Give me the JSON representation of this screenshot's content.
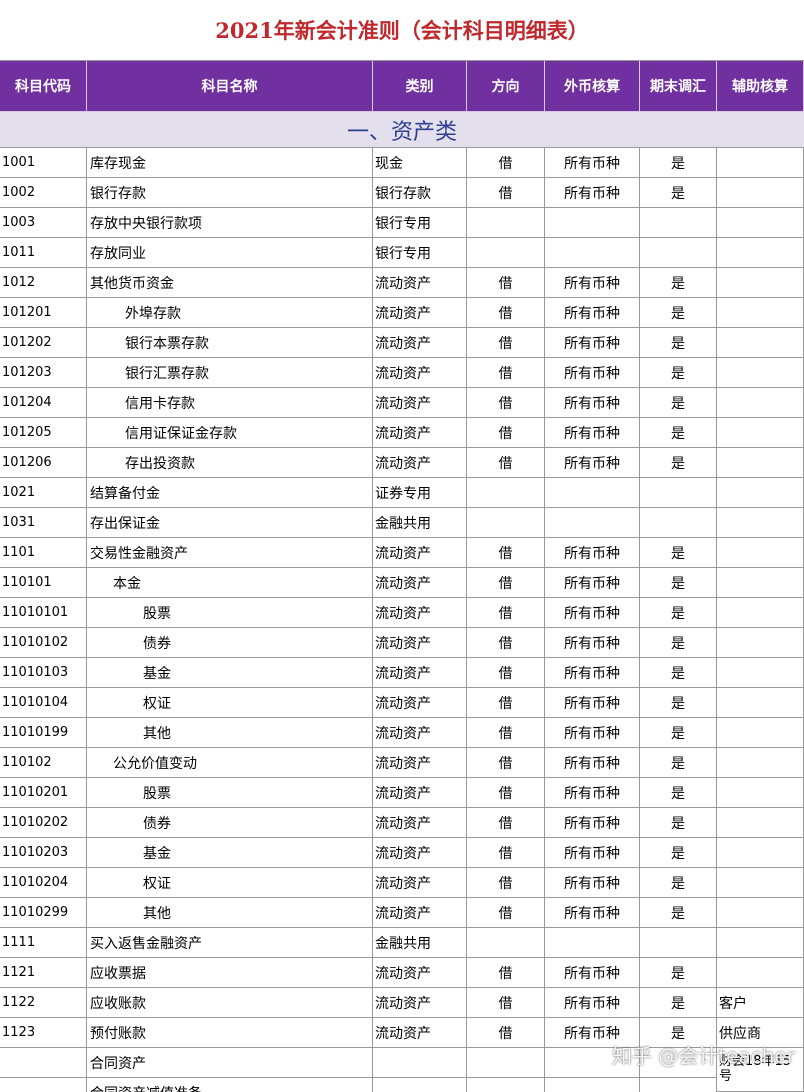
{
  "title": "2021年新会计准则（会计科目明细表）",
  "header": {
    "columns": [
      "科目代码",
      "科目名称",
      "类别",
      "方向",
      "外币核算",
      "期末调汇",
      "辅助核算"
    ]
  },
  "section": {
    "title": "一、资产类"
  },
  "rows": [
    [
      "1001",
      "库存现金",
      "现金",
      "借",
      "所有币种",
      "是",
      null
    ],
    [
      "1002",
      "银行存款",
      "银行存款",
      "借",
      "所有币种",
      "是",
      null
    ],
    [
      "1003",
      "存放中央银行款项",
      "银行专用",
      null,
      null,
      null,
      null
    ],
    [
      "1011",
      "存放同业",
      "银行专用",
      null,
      null,
      null,
      null
    ],
    [
      "1012",
      "其他货币资金",
      "流动资产",
      "借",
      "所有币种",
      "是",
      null
    ],
    [
      "101201",
      "外埠存款",
      "流动资产",
      "借",
      "所有币种",
      "是",
      null
    ],
    [
      "101202",
      "银行本票存款",
      "流动资产",
      "借",
      "所有币种",
      "是",
      null
    ],
    [
      "101203",
      "银行汇票存款",
      "流动资产",
      "借",
      "所有币种",
      "是",
      null
    ],
    [
      "101204",
      "信用卡存款",
      "流动资产",
      "借",
      "所有币种",
      "是",
      null
    ],
    [
      "101205",
      "信用证保证金存款",
      "流动资产",
      "借",
      "所有币种",
      "是",
      null
    ],
    [
      "101206",
      "存出投资款",
      "流动资产",
      "借",
      "所有币种",
      "是",
      null
    ],
    [
      "1021",
      "结算备付金",
      "证券专用",
      null,
      null,
      null,
      null
    ],
    [
      "1031",
      "存出保证金",
      "金融共用",
      null,
      null,
      null,
      null
    ],
    [
      "1101",
      "交易性金融资产",
      "流动资产",
      "借",
      "所有币种",
      "是",
      null
    ],
    [
      "110101",
      "本金",
      "流动资产",
      "借",
      "所有币种",
      "是",
      null
    ],
    [
      "11010101",
      "股票",
      "流动资产",
      "借",
      "所有币种",
      "是",
      null
    ],
    [
      "11010102",
      "债券",
      "流动资产",
      "借",
      "所有币种",
      "是",
      null
    ],
    [
      "11010103",
      "基金",
      "流动资产",
      "借",
      "所有币种",
      "是",
      null
    ],
    [
      "11010104",
      "权证",
      "流动资产",
      "借",
      "所有币种",
      "是",
      null
    ],
    [
      "11010199",
      "其他",
      "流动资产",
      "借",
      "所有币种",
      "是",
      null
    ],
    [
      "110102",
      "公允价值变动",
      "流动资产",
      "借",
      "所有币种",
      "是",
      null
    ],
    [
      "11010201",
      "股票",
      "流动资产",
      "借",
      "所有币种",
      "是",
      null
    ],
    [
      "11010202",
      "债券",
      "流动资产",
      "借",
      "所有币种",
      "是",
      null
    ],
    [
      "11010203",
      "基金",
      "流动资产",
      "借",
      "所有币种",
      "是",
      null
    ],
    [
      "11010204",
      "权证",
      "流动资产",
      "借",
      "所有币种",
      "是",
      null
    ],
    [
      "11010299",
      "其他",
      "流动资产",
      "借",
      "所有币种",
      "是",
      null
    ],
    [
      "1111",
      "买入返售金融资产",
      "金融共用",
      null,
      null,
      null,
      null
    ],
    [
      "1121",
      "应收票据",
      "流动资产",
      "借",
      "所有币种",
      "是",
      null
    ],
    [
      "1122",
      "应收账款",
      "流动资产",
      "借",
      "所有币种",
      "是",
      "客户"
    ],
    [
      "1123",
      "预付账款",
      "流动资产",
      "借",
      "所有币种",
      "是",
      "供应商"
    ],
    [
      null,
      "合同资产",
      null,
      null,
      null,
      null,
      "财会18年15号"
    ],
    [
      null,
      "合同资产减值准备",
      null,
      null,
      null,
      null,
      null
    ]
  ],
  "watermark": "知乎 @会计teacher"
}
